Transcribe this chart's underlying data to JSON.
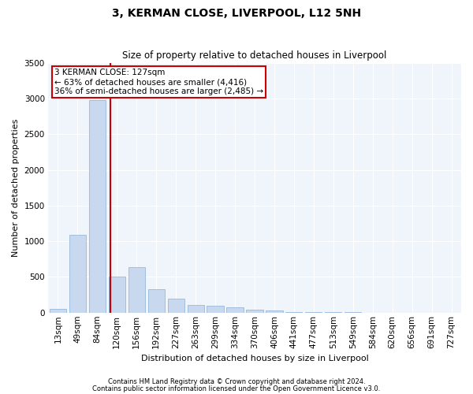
{
  "title": "3, KERMAN CLOSE, LIVERPOOL, L12 5NH",
  "subtitle": "Size of property relative to detached houses in Liverpool",
  "xlabel": "Distribution of detached houses by size in Liverpool",
  "ylabel": "Number of detached properties",
  "footnote1": "Contains HM Land Registry data © Crown copyright and database right 2024.",
  "footnote2": "Contains public sector information licensed under the Open Government Licence v3.0.",
  "annotation_line1": "3 KERMAN CLOSE: 127sqm",
  "annotation_line2": "← 63% of detached houses are smaller (4,416)",
  "annotation_line3": "36% of semi-detached houses are larger (2,485) →",
  "bar_color": "#c8d9ef",
  "bar_edge_color": "#8aafd4",
  "grid_color": "#d0d8e8",
  "redline_color": "#cc0000",
  "annotation_box_color": "#cc0000",
  "bg_color": "#f0f4fb",
  "categories": [
    "13sqm",
    "49sqm",
    "84sqm",
    "120sqm",
    "156sqm",
    "192sqm",
    "227sqm",
    "263sqm",
    "299sqm",
    "334sqm",
    "370sqm",
    "406sqm",
    "441sqm",
    "477sqm",
    "513sqm",
    "549sqm",
    "584sqm",
    "620sqm",
    "656sqm",
    "691sqm",
    "727sqm"
  ],
  "values": [
    55,
    1090,
    2980,
    510,
    640,
    325,
    195,
    105,
    100,
    80,
    45,
    25,
    12,
    8,
    6,
    4,
    2,
    1,
    1,
    1,
    1
  ],
  "ylim": [
    0,
    3500
  ],
  "yticks": [
    0,
    500,
    1000,
    1500,
    2000,
    2500,
    3000,
    3500
  ],
  "red_line_bar_index": 3,
  "title_fontsize": 10,
  "subtitle_fontsize": 8.5,
  "axis_label_fontsize": 8,
  "tick_fontsize": 7.5,
  "annotation_fontsize": 7.5,
  "footnote_fontsize": 6
}
